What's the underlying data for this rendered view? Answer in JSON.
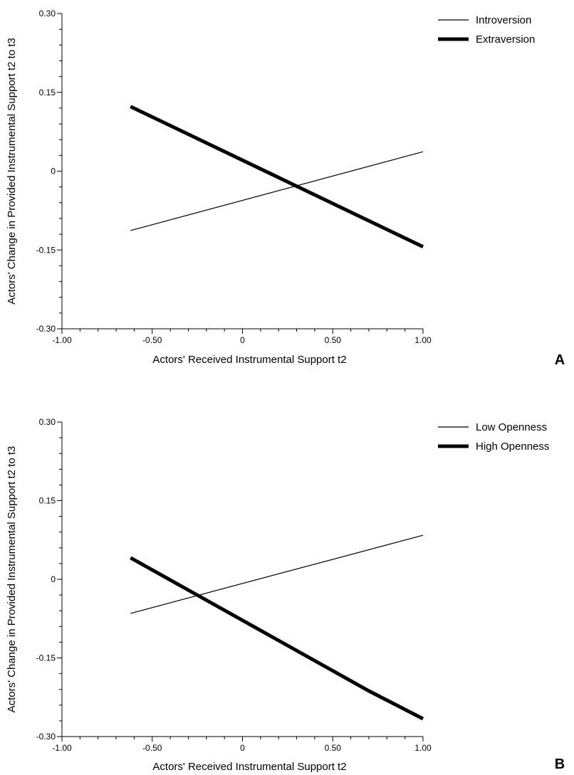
{
  "chart_data": [
    {
      "type": "line",
      "panel_label": "A",
      "xlabel": "Actors' Received Instrumental Support t2",
      "ylabel": "Actors' Change in Provided Instrumental Support t2 to t3",
      "xlim": [
        -1.0,
        1.0
      ],
      "ylim": [
        -0.3,
        0.3
      ],
      "x_ticks": [
        "-1.00",
        "-0.50",
        "0",
        "0.50",
        "1.00"
      ],
      "y_ticks": [
        "-0.30",
        "-0.15",
        "0",
        "0.15",
        "0.30"
      ],
      "grid": false,
      "legend_position": "top-right",
      "series": [
        {
          "name": "Introversion",
          "style": "thin",
          "points": [
            [
              -0.62,
              -0.113
            ],
            [
              1.0,
              0.037
            ]
          ]
        },
        {
          "name": "Extraversion",
          "style": "thick",
          "points": [
            [
              -0.62,
              0.123
            ],
            [
              1.0,
              -0.144
            ]
          ]
        }
      ]
    },
    {
      "type": "line",
      "panel_label": "B",
      "xlabel": "Actors' Received Instrumental Support t2",
      "ylabel": "Actors' Change in Provided Instrumental Support t2 to t3",
      "xlim": [
        -1.0,
        1.0
      ],
      "ylim": [
        -0.3,
        0.3
      ],
      "x_ticks": [
        "-1.00",
        "-0.50",
        "0",
        "0.50",
        "1.00"
      ],
      "y_ticks": [
        "-0.30",
        "-0.15",
        "0",
        "0.15",
        "0.30"
      ],
      "grid": false,
      "legend_position": "top-right",
      "series": [
        {
          "name": "Low Openness",
          "style": "thin",
          "points": [
            [
              -0.62,
              -0.065
            ],
            [
              1.0,
              0.084
            ]
          ]
        },
        {
          "name": "High Openness",
          "style": "thick",
          "points": [
            [
              -0.62,
              0.041
            ],
            [
              0.7,
              -0.213
            ],
            [
              1.0,
              -0.266
            ]
          ]
        }
      ]
    }
  ]
}
